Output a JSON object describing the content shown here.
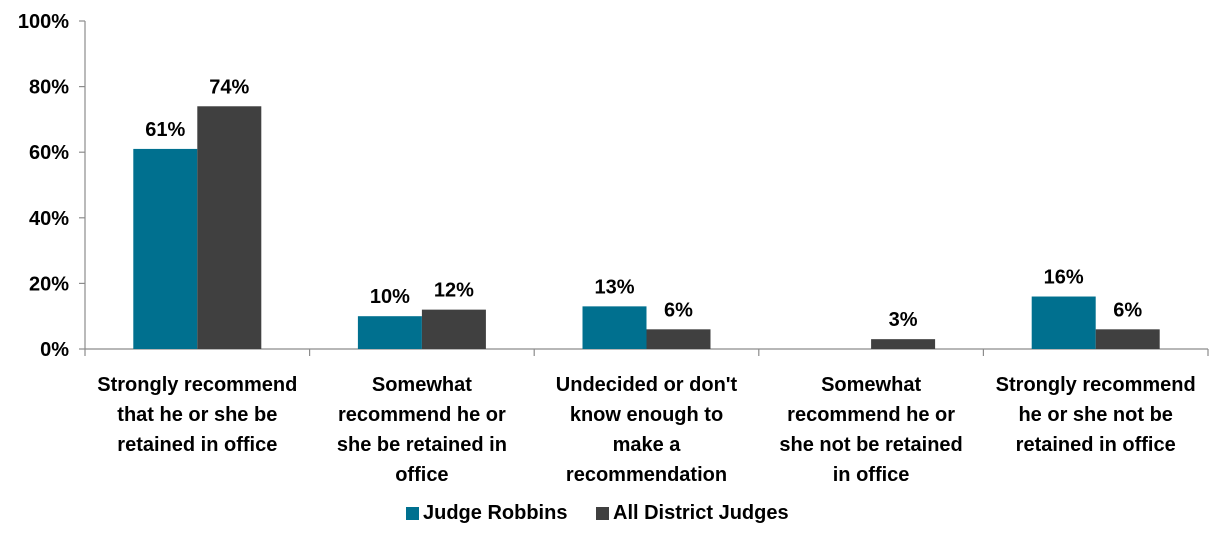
{
  "chart_data": {
    "type": "bar",
    "title": "",
    "xlabel": "",
    "ylabel": "",
    "ylim": [
      0,
      100
    ],
    "yticks": [
      0,
      20,
      40,
      60,
      80,
      100
    ],
    "ytick_labels": [
      "0%",
      "20%",
      "40%",
      "60%",
      "80%",
      "100%"
    ],
    "grid": false,
    "legend_position": "bottom",
    "categories": [
      [
        "Strongly recommend",
        "that he or she be",
        "retained in office"
      ],
      [
        "Somewhat",
        "recommend he or",
        "she be retained in",
        "office"
      ],
      [
        "Undecided or don't",
        "know enough to",
        "make a",
        "recommendation"
      ],
      [
        "Somewhat",
        "recommend he or",
        "she not be retained",
        "in office"
      ],
      [
        "Strongly recommend",
        "he or she not be",
        "retained in office"
      ]
    ],
    "series": [
      {
        "name": "Judge Robbins",
        "color": "#00708F",
        "values": [
          61,
          10,
          13,
          0,
          16
        ],
        "labels": [
          "61%",
          "10%",
          "13%",
          "",
          "16%"
        ]
      },
      {
        "name": "All District Judges",
        "color": "#404040",
        "values": [
          74,
          12,
          6,
          3,
          6
        ],
        "labels": [
          "74%",
          "12%",
          "6%",
          "3%",
          "6%"
        ]
      }
    ]
  }
}
